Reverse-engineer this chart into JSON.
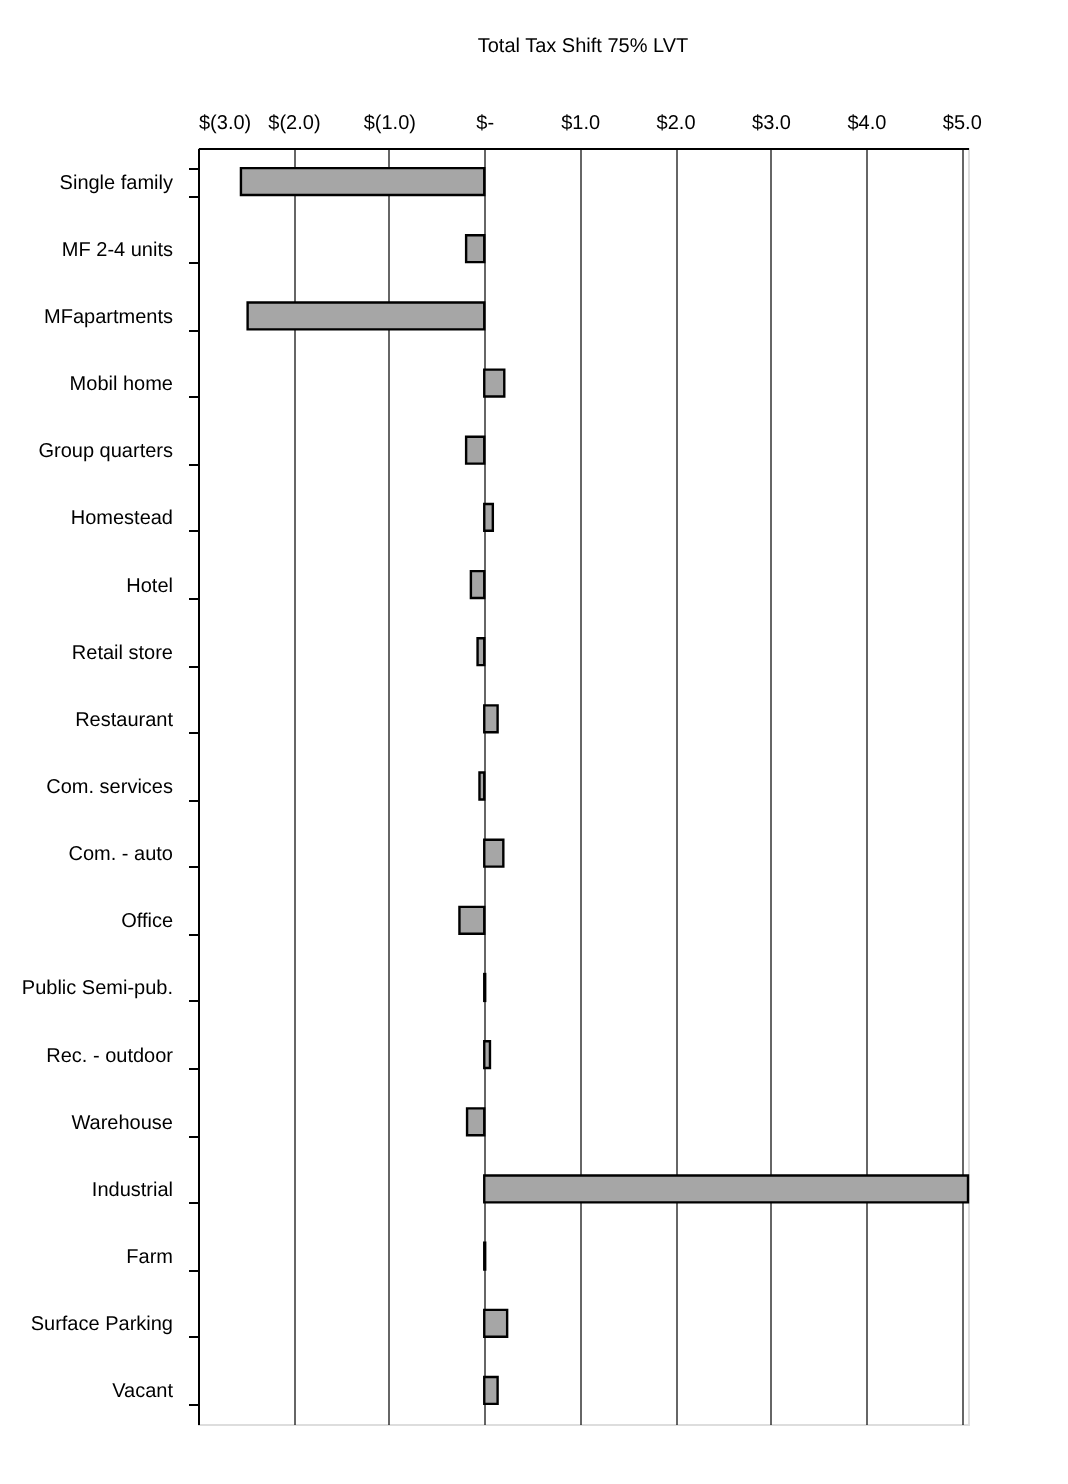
{
  "chart_data": {
    "type": "bar",
    "orientation": "horizontal",
    "title": "Total Tax Shift  75% LVT",
    "categories": [
      "Single family",
      "MF 2-4 units",
      "MFapartments",
      "Mobil home",
      "Group quarters",
      "Homestead",
      "Hotel",
      "Retail store",
      "Restaurant",
      "Com. services",
      "Com. - auto",
      "Office",
      "Public Semi-pub.",
      "Rec. - outdoor",
      "Warehouse",
      "Industrial",
      "Farm",
      "Surface Parking",
      "Vacant"
    ],
    "values": [
      -2.55,
      -0.19,
      -2.48,
      0.21,
      -0.19,
      0.09,
      -0.14,
      -0.07,
      0.14,
      -0.05,
      0.2,
      -0.26,
      0.01,
      0.06,
      -0.18,
      5.07,
      0.01,
      0.24,
      0.14
    ],
    "color": "#a6a6a6",
    "xlim": [
      -3,
      5.07
    ],
    "xticks": [
      {
        "value": -3,
        "label": "$(3.0)"
      },
      {
        "value": -2,
        "label": "$(2.0)"
      },
      {
        "value": -1,
        "label": "$(1.0)"
      },
      {
        "value": 0,
        "label": "$-"
      },
      {
        "value": 1,
        "label": "$1.0"
      },
      {
        "value": 2,
        "label": "$2.0"
      },
      {
        "value": 3,
        "label": "$3.0"
      },
      {
        "value": 4,
        "label": "$4.0"
      },
      {
        "value": 5,
        "label": "$5.0"
      }
    ],
    "grid": "x"
  }
}
